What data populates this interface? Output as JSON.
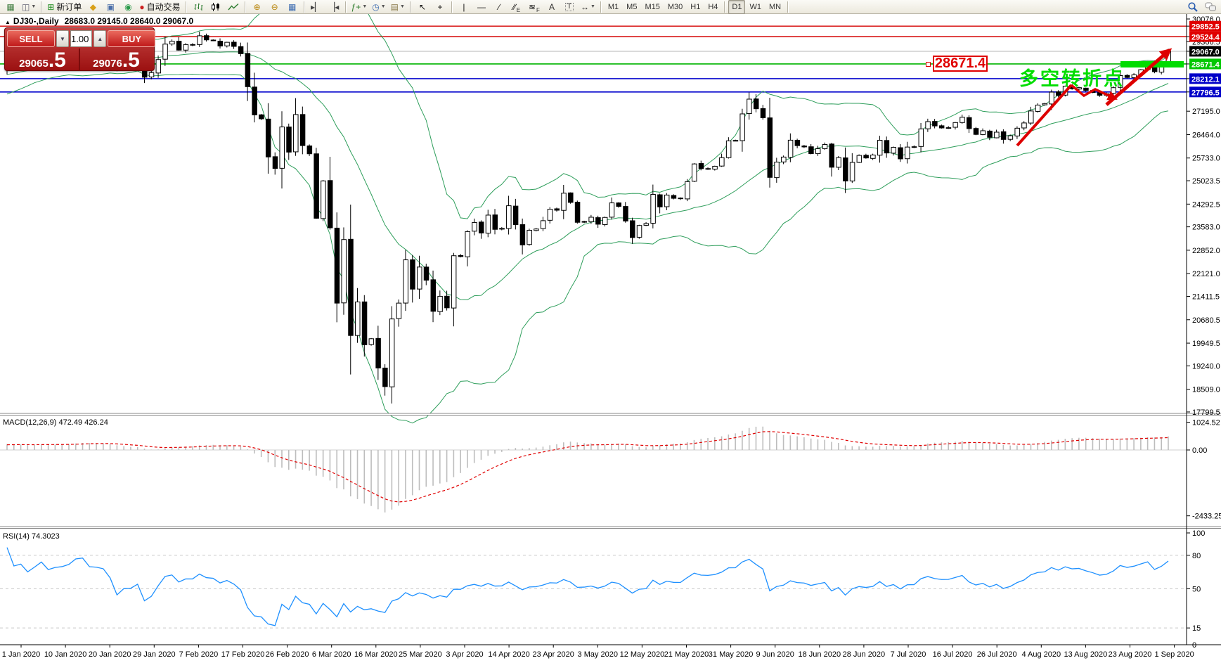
{
  "toolbar": {
    "items": [
      {
        "t": "icon",
        "name": "new-chart",
        "glyph": "▦",
        "c": "#3f7d3f"
      },
      {
        "t": "icon",
        "name": "profiles",
        "glyph": "◫",
        "c": "#667",
        "dd": true
      },
      {
        "t": "sep"
      },
      {
        "t": "icon",
        "name": "new-order",
        "glyph": "⊞",
        "c": "#1a8a1a",
        "label": "新订单"
      },
      {
        "t": "icon",
        "name": "history-center",
        "glyph": "◆",
        "c": "#d8a018"
      },
      {
        "t": "icon",
        "name": "market-watch",
        "glyph": "▣",
        "c": "#4a6ea8"
      },
      {
        "t": "icon",
        "name": "signals",
        "glyph": "◉",
        "c": "#2a9a4a"
      },
      {
        "t": "icon",
        "name": "autotrading",
        "glyph": "●",
        "c": "#cc2222",
        "label": "自动交易"
      },
      {
        "t": "sep"
      },
      {
        "t": "svg",
        "name": "bar-chart-mode"
      },
      {
        "t": "svg",
        "name": "candle-chart-mode"
      },
      {
        "t": "svg",
        "name": "line-chart-mode"
      },
      {
        "t": "sep"
      },
      {
        "t": "icon",
        "name": "zoom-in",
        "glyph": "⊕",
        "c": "#b8860b"
      },
      {
        "t": "icon",
        "name": "zoom-out",
        "glyph": "⊖",
        "c": "#b8860b"
      },
      {
        "t": "icon",
        "name": "tile-windows",
        "glyph": "▦",
        "c": "#3a6ab0"
      },
      {
        "t": "sep"
      },
      {
        "t": "icon",
        "name": "auto-scroll",
        "glyph": "▸▏",
        "c": "#444"
      },
      {
        "t": "icon",
        "name": "chart-shift",
        "glyph": "▕◂",
        "c": "#444"
      },
      {
        "t": "sep"
      },
      {
        "t": "icon",
        "name": "indicators-add",
        "glyph": "ƒ+",
        "c": "#2a7a2a",
        "dd": true
      },
      {
        "t": "icon",
        "name": "periods",
        "glyph": "◷",
        "c": "#3a6ab0",
        "dd": true
      },
      {
        "t": "icon",
        "name": "templates",
        "glyph": "▤",
        "c": "#8a7a4a",
        "dd": true
      },
      {
        "t": "sep"
      },
      {
        "t": "icon",
        "name": "cursor",
        "glyph": "↖",
        "c": "#111"
      },
      {
        "t": "icon",
        "name": "crosshair",
        "glyph": "+",
        "c": "#111"
      },
      {
        "t": "sep"
      },
      {
        "t": "icon",
        "name": "vertical-line",
        "glyph": "|",
        "c": "#111"
      },
      {
        "t": "icon",
        "name": "horizontal-line",
        "glyph": "—",
        "c": "#111"
      },
      {
        "t": "icon",
        "name": "trendline",
        "glyph": "∕",
        "c": "#111"
      },
      {
        "t": "icon",
        "name": "equidistant-channel",
        "glyph": "∕∕",
        "c": "#111",
        "sub": "E"
      },
      {
        "t": "icon",
        "name": "fibonacci-retracement",
        "glyph": "≋",
        "c": "#111",
        "sub": "F"
      },
      {
        "t": "icon",
        "name": "text",
        "glyph": "A",
        "c": "#333"
      },
      {
        "t": "icon",
        "name": "text-label",
        "glyph": "T",
        "c": "#333",
        "boxed": true
      },
      {
        "t": "icon",
        "name": "arrows",
        "glyph": "↔",
        "c": "#333",
        "dd": true
      },
      {
        "t": "sep"
      },
      {
        "t": "tf",
        "label": "M1"
      },
      {
        "t": "tf",
        "label": "M5"
      },
      {
        "t": "tf",
        "label": "M15"
      },
      {
        "t": "tf",
        "label": "M30"
      },
      {
        "t": "tf",
        "label": "H1"
      },
      {
        "t": "tf",
        "label": "H4"
      },
      {
        "t": "sep"
      },
      {
        "t": "tf",
        "label": "D1"
      },
      {
        "t": "tf",
        "label": "W1"
      },
      {
        "t": "tf",
        "label": "MN"
      },
      {
        "t": "sep"
      },
      {
        "t": "spacer"
      },
      {
        "t": "svg",
        "name": "search"
      },
      {
        "t": "svg",
        "name": "chat"
      }
    ],
    "active_timeframe": "D1"
  },
  "chart": {
    "title_symbol": "DJ30-,Daily",
    "title_ohlc": "28683.0 29145.0 28640.0 29067.0"
  },
  "trade_panel": {
    "sell_label": "SELL",
    "buy_label": "BUY",
    "volume": "1.00",
    "sell_price_main": "29065",
    "sell_price_big": ".5",
    "buy_price_main": "29076",
    "buy_price_big": ".5"
  },
  "annotations": {
    "price_label": "28671.4",
    "turning_point_text": "多空转折点",
    "highlight_bar_color": "#00dc00",
    "arrow_color": "#dd0000"
  },
  "chart_data": {
    "type": "candlestick",
    "symbol": "DJ30-",
    "timeframe": "Daily",
    "x_labels": [
      "1 Jan 2020",
      "10 Jan 2020",
      "20 Jan 2020",
      "29 Jan 2020",
      "7 Feb 2020",
      "17 Feb 2020",
      "26 Feb 2020",
      "6 Mar 2020",
      "16 Mar 2020",
      "25 Mar 2020",
      "3 Apr 2020",
      "14 Apr 2020",
      "23 Apr 2020",
      "3 May 2020",
      "12 May 2020",
      "21 May 2020",
      "31 May 2020",
      "9 Jun 2020",
      "18 Jun 2020",
      "28 Jun 2020",
      "7 Jul 2020",
      "16 Jul 2020",
      "26 Jul 2020",
      "4 Aug 2020",
      "13 Aug 2020",
      "23 Aug 2020",
      "1 Sep 2020"
    ],
    "price_ticks": [
      30076.0,
      29366.5,
      27195.0,
      26464.0,
      25733.0,
      25023.5,
      24292.5,
      23583.0,
      22852.0,
      22121.0,
      21411.5,
      20680.5,
      19949.5,
      19240.0,
      18509.0,
      17799.5
    ],
    "price_badges": [
      {
        "value": "29852.5",
        "price": 29852.5,
        "color": "#e00000"
      },
      {
        "value": "29524.4",
        "price": 29524.4,
        "color": "#e00000"
      },
      {
        "value": "29067.0",
        "price": 29067.0,
        "color": "#000000"
      },
      {
        "value": "28671.4",
        "price": 28671.4,
        "color": "#00c800"
      },
      {
        "value": "28212.1",
        "price": 28212.1,
        "color": "#0000c8"
      },
      {
        "value": "27796.5",
        "price": 27796.5,
        "color": "#0000c8"
      }
    ],
    "levels": [
      {
        "price": 29852.5,
        "color": "#d40000",
        "w": 1.4
      },
      {
        "price": 29524.4,
        "color": "#d40000",
        "w": 1.4
      },
      {
        "price": 29067.0,
        "color": "#b4b4b4",
        "w": 1
      },
      {
        "price": 28671.4,
        "color": "#00b400",
        "w": 1.6
      },
      {
        "price": 28212.1,
        "color": "#0000cc",
        "w": 1.4
      },
      {
        "price": 27796.5,
        "color": "#0000cc",
        "w": 1.6
      }
    ],
    "pre_closes": [
      27783,
      27821,
      27850,
      27882,
      27911,
      28015,
      28132,
      28235,
      28290,
      28338,
      28376,
      28455,
      28515,
      28551,
      28608,
      28621,
      28645,
      28677,
      28515,
      28538
    ],
    "closes": [
      28869,
      28635,
      28704,
      28584,
      28745,
      28957,
      28824,
      28907,
      28939,
      29030,
      29298,
      29348,
      29196,
      29186,
      29160,
      28990,
      28536,
      28723,
      28734,
      28859,
      28256,
      28400,
      28808,
      29291,
      29380,
      29103,
      29277,
      29276,
      29551,
      29423,
      29398,
      29232,
      29348,
      29220,
      28992,
      27961,
      27081,
      26958,
      25767,
      25409,
      26703,
      25917,
      27091,
      26121,
      25865,
      23851,
      25018,
      23553,
      21200,
      23186,
      20188,
      21237,
      19899,
      20087,
      19174,
      18592,
      20705,
      21200,
      22552,
      21637,
      22327,
      21917,
      20944,
      21413,
      21053,
      22680,
      22654,
      23434,
      23719,
      23391,
      23949,
      23504,
      23537,
      24242,
      23650,
      23018,
      23476,
      23515,
      23775,
      24134,
      24102,
      24634,
      24346,
      23724,
      23749,
      23883,
      23665,
      23876,
      24331,
      24222,
      23765,
      23248,
      23625,
      23685,
      24597,
      24206,
      24576,
      24474,
      24465,
      24995,
      25548,
      25401,
      25383,
      25475,
      25743,
      26270,
      26282,
      27111,
      27572,
      27272,
      26990,
      25128,
      25605,
      25763,
      26290,
      26120,
      26080,
      25871,
      26025,
      26156,
      25445,
      25746,
      25016,
      25596,
      25813,
      25735,
      25827,
      26287,
      25890,
      26067,
      25706,
      26075,
      26086,
      26643,
      26870,
      26735,
      26672,
      26681,
      26840,
      27006,
      26652,
      26470,
      26585,
      26379,
      26540,
      26313,
      26428,
      26664,
      26828,
      27202,
      27387,
      27433,
      27791,
      27687,
      27977,
      27897,
      27931,
      27845,
      27778,
      27693,
      27740,
      27930,
      28308,
      28248,
      28332,
      28492,
      28654,
      28430,
      28645,
      29067
    ],
    "last_candle": {
      "open": 28683.0,
      "high": 29145.0,
      "low": 28640.0,
      "close": 29067.0
    },
    "bollinger": {
      "period": 20,
      "deviation": 2,
      "color": "#2e9e5b"
    },
    "macd": {
      "display": "MACD(12,26,9) 472.49 426.24",
      "params": "12,26,9",
      "main_value": 472.49,
      "signal_value": 426.24,
      "ticks": [
        {
          "label": "1024.52",
          "v": 1024.52
        },
        {
          "label": "0.00",
          "v": 0
        },
        {
          "label": "-2433.25",
          "v": -2433.25
        }
      ],
      "hist_color": "#bdbdbd",
      "signal_color": "#e00000"
    },
    "rsi": {
      "display": "RSI(14) 74.3023",
      "period": 14,
      "value": 74.3023,
      "ticks": [
        {
          "label": "100",
          "v": 100
        },
        {
          "label": "80",
          "v": 80
        },
        {
          "label": "50",
          "v": 50
        },
        {
          "label": "15",
          "v": 15
        },
        {
          "label": "0",
          "v": 0
        }
      ],
      "levels": [
        80,
        50,
        15
      ],
      "line_color": "#1e90ff"
    }
  }
}
